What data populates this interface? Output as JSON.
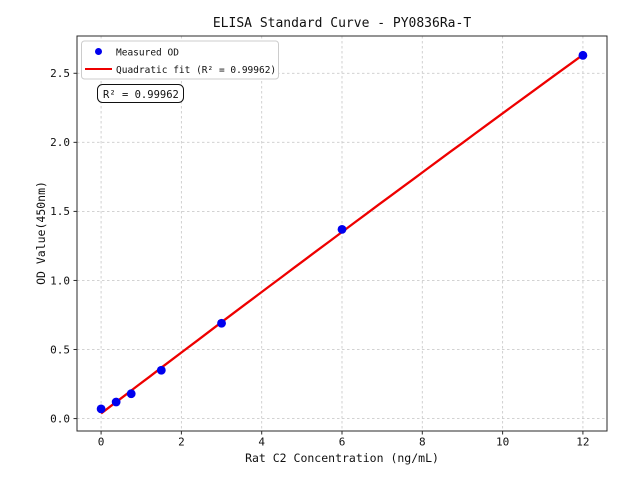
{
  "chart_data": {
    "type": "scatter",
    "title": "ELISA Standard Curve - PY0836Ra-T",
    "xlabel": "Rat C2 Concentration (ng/mL)",
    "ylabel": "OD Value(450nm)",
    "x": [
      0,
      0.375,
      0.75,
      1.5,
      3,
      6,
      12
    ],
    "series": [
      {
        "name": "Measured OD",
        "kind": "scatter",
        "marker": "circle",
        "color": "#0000ee",
        "values": [
          0.07,
          0.12,
          0.18,
          0.35,
          0.69,
          1.37,
          2.63
        ]
      },
      {
        "name": "Quadratic fit (R² = 0.99962)",
        "kind": "line",
        "fit": "quadratic",
        "fit_of": "Measured OD",
        "color": "#ee0000"
      }
    ],
    "r_squared": 0.99962,
    "annotation": "R² = 0.99962",
    "xlim": [
      -0.6,
      12.6
    ],
    "ylim": [
      -0.09,
      2.77
    ],
    "x_ticks": {
      "values": [
        0,
        2,
        4,
        6,
        8,
        10,
        12
      ],
      "labels": [
        "0",
        "2",
        "4",
        "6",
        "8",
        "10",
        "12"
      ]
    },
    "y_ticks": {
      "values": [
        0,
        0.5,
        1.0,
        1.5,
        2.0,
        2.5
      ],
      "labels": [
        "0.0",
        "0.5",
        "1.0",
        "1.5",
        "2.0",
        "2.5"
      ]
    },
    "grid": true,
    "grid_style": "dashed",
    "legend": {
      "position": "upper left",
      "entries": [
        {
          "label": "Measured OD",
          "marker": "circle",
          "color": "#0000ee"
        },
        {
          "label": "Quadratic fit (R² = 0.99962)",
          "marker": "line",
          "color": "#ee0000"
        }
      ]
    },
    "colors": {
      "background": "#ffffff",
      "spine": "#2a2a2a",
      "grid": "#cbcbcb",
      "legend_border": "#cccccc",
      "annotation_border": "#111111"
    }
  }
}
